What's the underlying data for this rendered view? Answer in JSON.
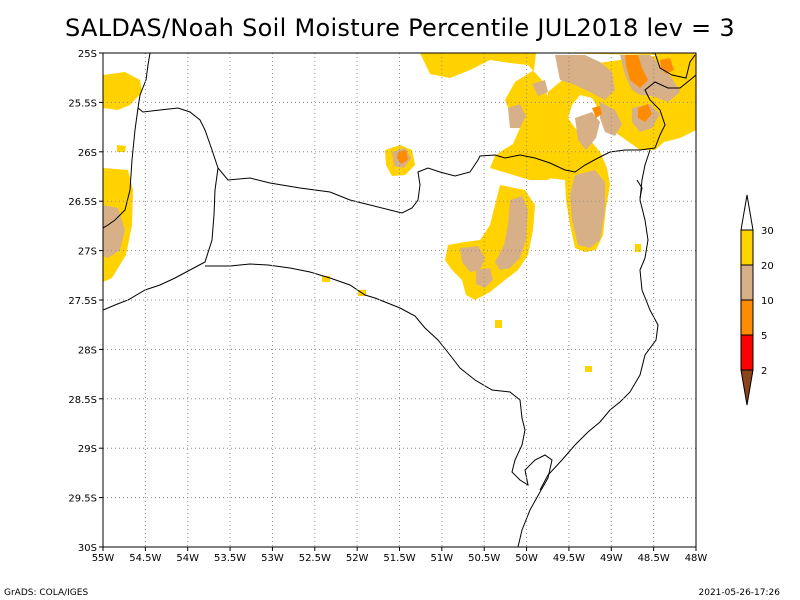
{
  "title": "SALDAS/Noah Soil Moisture Percentile JUL2018 lev = 3",
  "map": {
    "lon_range": [
      -55,
      -48
    ],
    "lat_range": [
      -30,
      -25
    ],
    "x_ticks": [
      "55W",
      "54.5W",
      "54W",
      "53.5W",
      "53W",
      "52.5W",
      "52W",
      "51.5W",
      "51W",
      "50.5W",
      "50W",
      "49.5W",
      "49W",
      "48.5W",
      "48W"
    ],
    "y_ticks": [
      "25S",
      "25.5S",
      "26S",
      "26.5S",
      "27S",
      "27.5S",
      "28S",
      "28.5S",
      "29S",
      "29.5S",
      "30S"
    ],
    "grid": true
  },
  "legend": {
    "orientation": "vertical",
    "placement": "right",
    "levels": [
      {
        "label": "30",
        "color": "#ffd200"
      },
      {
        "label": "20",
        "color": "#d8b088"
      },
      {
        "label": "10",
        "color": "#ff8c00"
      },
      {
        "label": "5",
        "color": "#ff0000"
      },
      {
        "label": "2",
        "color": "#8a4418"
      }
    ]
  },
  "footer": {
    "left": "GrADS: COLA/IGES",
    "right": "2021-05-26-17:26"
  }
}
